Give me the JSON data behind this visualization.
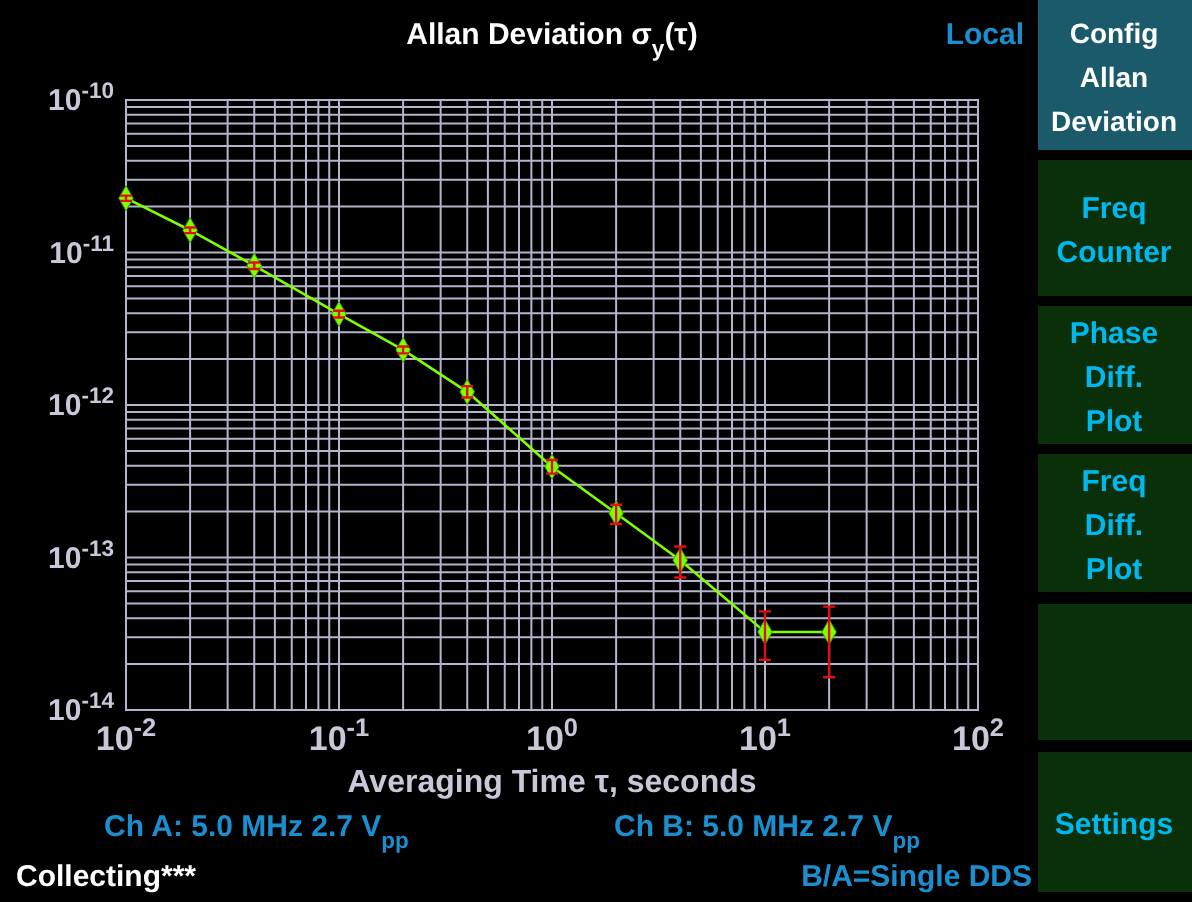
{
  "chart_data": {
    "type": "line",
    "title": "Allan Deviation σ$_{y}$(τ)",
    "xlabel": "Averaging Time τ, seconds",
    "x": [
      0.01,
      0.02,
      0.04,
      0.1,
      0.2,
      0.4,
      1,
      2,
      4,
      10,
      20
    ],
    "series": [
      {
        "color": "#80ff00",
        "values": [
          2.27e-11,
          1.4e-11,
          8.2e-12,
          3.95e-12,
          2.3e-12,
          1.22e-12,
          3.94e-13,
          1.95e-13,
          9.6e-14,
          3.25e-14,
          3.25e-14
        ],
        "errors": [
          [
            2.18e-11,
            2.36e-11
          ],
          [
            1.34e-11,
            1.46e-11
          ],
          [
            7.8e-12,
            8.6e-12
          ],
          [
            3.75e-12,
            4.15e-12
          ],
          [
            2.18e-12,
            2.42e-12
          ],
          [
            1.12e-12,
            1.33e-12
          ],
          [
            3.55e-13,
            4.36e-13
          ],
          [
            1.66e-13,
            2.22e-13
          ],
          [
            7.4e-14,
            1.18e-13
          ],
          [
            2.13e-14,
            4.43e-14
          ],
          [
            1.64e-14,
            4.76e-14
          ]
        ]
      }
    ],
    "xlim": [
      0.01,
      100
    ],
    "ylim": [
      1e-14,
      1e-10
    ],
    "xticks": [
      {
        "value": 0.01,
        "label": "10$^{-2}$"
      },
      {
        "value": 0.1,
        "label": "10$^{-1}$"
      },
      {
        "value": 1,
        "label": "10$^{0}$"
      },
      {
        "value": 10,
        "label": "10$^{1}$"
      },
      {
        "value": 100,
        "label": "10$^{2}$"
      }
    ],
    "yticks": [
      {
        "value": 1e-14,
        "label": "10$^{-14}$"
      },
      {
        "value": 1e-13,
        "label": "10$^{-13}$"
      },
      {
        "value": 1e-12,
        "label": "10$^{-12}$"
      },
      {
        "value": 1e-11,
        "label": "10$^{-11}$"
      },
      {
        "value": 1e-10,
        "label": "10$^{-10}$"
      }
    ],
    "log": "xy",
    "grid": true,
    "marker": "diamond",
    "line_style": "solid",
    "annotations": [
      "Local",
      "Ch A: 5.0 MHz 2.7 V$_{pp}$",
      "Ch B: 5.0 MHz 2.7 V$_{pp}$",
      "Collecting***",
      "B/A=Single DDS",
      "Config\nAllan\nDeviation",
      "Freq\nCounter",
      "Phase\nDiff.\nPlot",
      "Freq\nDiff.\nPlot",
      "Settings"
    ]
  }
}
